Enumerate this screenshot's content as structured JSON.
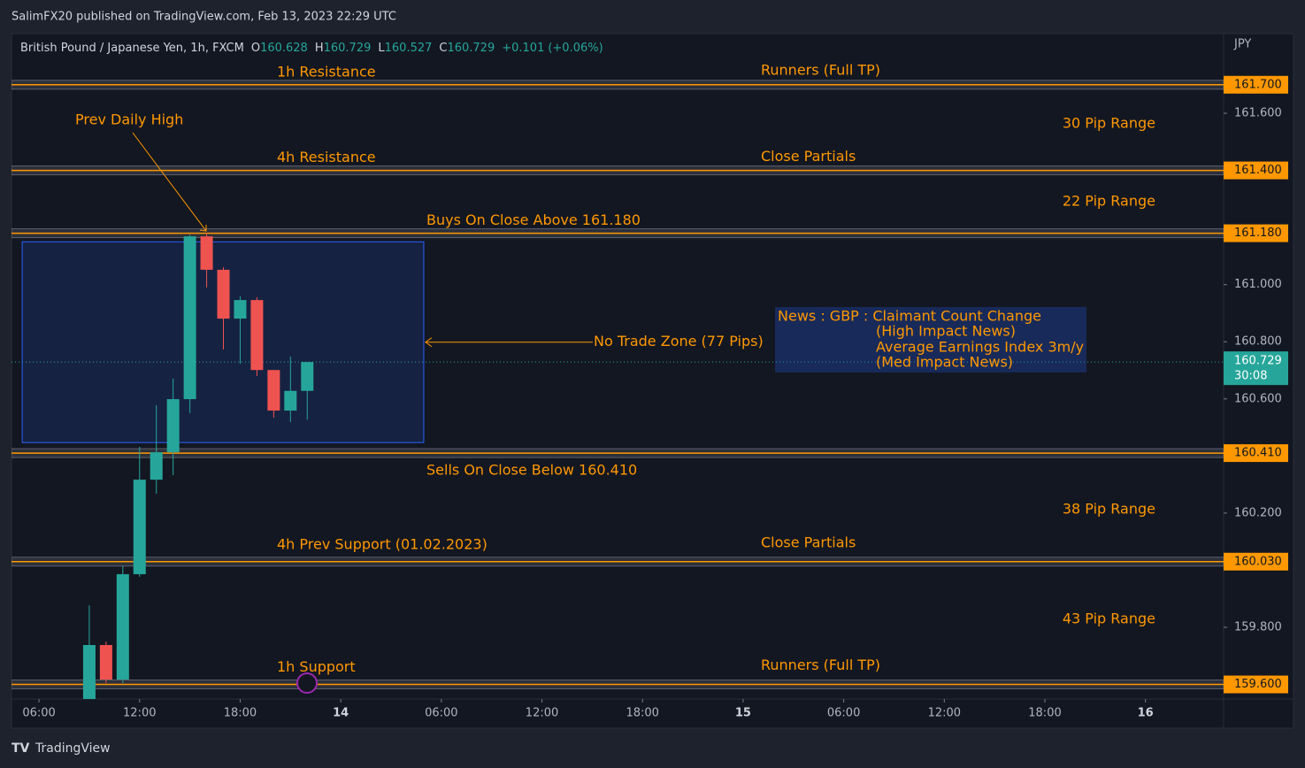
{
  "header": {
    "published": "SalimFX20 published on TradingView.com, Feb 13, 2023 22:29 UTC",
    "footer": "TradingView"
  },
  "chart_data": {
    "type": "candlestick",
    "symbol": "British Pound / Japanese Yen, 1h, FXCM",
    "ohlc_labels": [
      "O",
      "H",
      "L",
      "C"
    ],
    "change": "+0.101",
    "change_pct": "(+0.06%)",
    "currency": "JPY",
    "countdown": "30:08",
    "x": [
      9,
      10,
      11,
      12,
      13,
      14,
      15,
      16,
      17,
      18,
      19,
      20,
      21,
      22
    ],
    "series": [
      {
        "open": [
          159.52,
          159.738,
          159.617,
          159.986,
          160.317,
          160.413,
          160.599,
          161.169,
          161.052,
          160.881,
          160.946,
          160.701,
          160.559,
          160.628
        ],
        "high": [
          159.877,
          159.75,
          160.014,
          160.432,
          160.578,
          160.671,
          161.175,
          161.182,
          161.061,
          160.959,
          160.956,
          160.701,
          160.748,
          160.729
        ],
        "low": [
          159.5,
          159.605,
          159.605,
          159.977,
          160.268,
          160.333,
          160.55,
          160.99,
          160.773,
          160.723,
          160.68,
          160.534,
          160.519,
          160.527
        ],
        "close": [
          159.738,
          159.617,
          159.986,
          160.317,
          160.413,
          160.599,
          161.169,
          161.052,
          160.881,
          160.946,
          160.701,
          160.559,
          160.628,
          160.729
        ],
        "up_color": "#26a69a",
        "down_color": "#ef5350"
      }
    ],
    "xlim": [
      4.36,
      76.66
    ],
    "xticks": [
      {
        "value": 6,
        "label": "06:00"
      },
      {
        "value": 12,
        "label": "12:00"
      },
      {
        "value": 18,
        "label": "18:00"
      },
      {
        "value": 24,
        "label": "14"
      },
      {
        "value": 30,
        "label": "06:00"
      },
      {
        "value": 36,
        "label": "12:00"
      },
      {
        "value": 42,
        "label": "18:00"
      },
      {
        "value": 48,
        "label": "15"
      },
      {
        "value": 54,
        "label": "06:00"
      },
      {
        "value": 60,
        "label": "12:00"
      },
      {
        "value": 66,
        "label": "18:00"
      },
      {
        "value": 72,
        "label": "16"
      }
    ],
    "ylim": [
      159.549,
      161.879
    ],
    "yticks": [
      {
        "value": 161.6,
        "label": "161.600"
      },
      {
        "value": 161,
        "label": "161.000"
      },
      {
        "value": 160.8,
        "label": "160.800"
      },
      {
        "value": 160.6,
        "label": "160.600"
      },
      {
        "value": 160.2,
        "label": "160.200"
      },
      {
        "value": 159.8,
        "label": "159.800"
      }
    ],
    "levels": [
      {
        "value": 161.7,
        "label": "161.700",
        "notes": [
          "1h Resistance",
          "Runners (Full TP)"
        ]
      },
      {
        "value": 161.4,
        "label": "161.400",
        "notes": [
          "4h Resistance",
          "Close Partials"
        ]
      },
      {
        "value": 161.18,
        "label": "161.180",
        "notes": [
          "Buys On Close Above 161.180"
        ]
      },
      {
        "value": 160.41,
        "label": "160.410",
        "notes": [
          "Sells On Close Below 160.410"
        ]
      },
      {
        "value": 160.03,
        "label": "160.030",
        "notes": [
          "4h Prev Support (01.02.2023)",
          "Close Partials"
        ]
      },
      {
        "value": 159.6,
        "label": "159.600",
        "notes": [
          "1h Support",
          "Runners (Full TP)"
        ]
      }
    ],
    "ranges": [
      "30 Pip Range",
      "22 Pip Range",
      "38 Pip Range",
      "43 Pip Range"
    ],
    "zone": {
      "label": "No Trade Zone (77 Pips)",
      "top": 161.15,
      "bottom": 160.447,
      "start": 5,
      "end": 28.95
    },
    "prev_high_label": "Prev Daily High",
    "news": [
      "News : GBP : Claimant Count Change",
      "(High Impact News)",
      "Average Earnings Index 3m/y",
      "(Med Impact News)"
    ],
    "level_color": "#ff9800"
  }
}
